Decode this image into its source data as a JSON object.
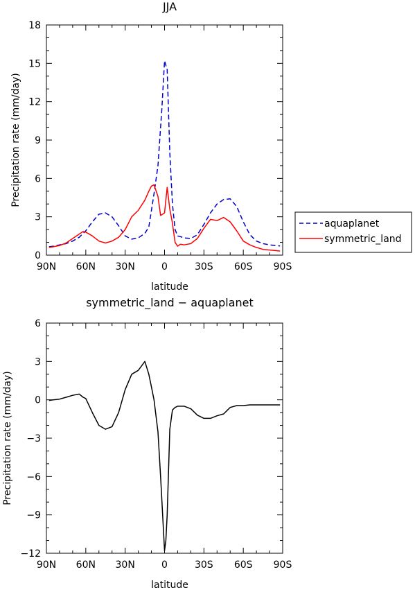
{
  "chart_data": [
    {
      "type": "line",
      "title": "JJA",
      "xlabel": "latitude",
      "ylabel": "Precipitation rate (mm/day)",
      "xlim": [
        -90,
        90
      ],
      "ylim": [
        0,
        18
      ],
      "x_tick_values": [
        -90,
        -60,
        -30,
        0,
        30,
        60,
        90
      ],
      "x_tick_labels": [
        "90N",
        "60N",
        "30N",
        "0",
        "30S",
        "60S",
        "90S"
      ],
      "y_tick_values": [
        0,
        3,
        6,
        9,
        12,
        15,
        18
      ],
      "y_tick_labels": [
        "0",
        "3",
        "6",
        "9",
        "12",
        "15",
        "18"
      ],
      "legend": "right",
      "grid": false,
      "series": [
        {
          "name": "aquaplanet",
          "color": "#0000cc",
          "dash": "dashed",
          "x": [
            -88,
            -85,
            -80,
            -75,
            -70,
            -65,
            -60,
            -55,
            -50,
            -45,
            -40,
            -35,
            -30,
            -25,
            -20,
            -15,
            -12,
            -10,
            -8,
            -5,
            -2,
            0,
            2,
            4,
            6,
            8,
            10,
            12,
            15,
            20,
            25,
            30,
            35,
            40,
            45,
            50,
            55,
            60,
            65,
            70,
            75,
            80,
            85,
            88
          ],
          "y": [
            0.65,
            0.7,
            0.8,
            0.9,
            1.1,
            1.4,
            1.9,
            2.6,
            3.2,
            3.3,
            3.0,
            2.3,
            1.5,
            1.25,
            1.35,
            1.7,
            2.2,
            3.5,
            4.8,
            7.0,
            11.5,
            15.2,
            14.5,
            8.0,
            4.0,
            2.0,
            1.5,
            1.45,
            1.35,
            1.3,
            1.6,
            2.4,
            3.3,
            4.0,
            4.35,
            4.4,
            3.8,
            2.6,
            1.6,
            1.1,
            0.9,
            0.8,
            0.75,
            0.72
          ]
        },
        {
          "name": "symmetric_land",
          "color": "#ff0000",
          "dash": "solid",
          "x": [
            -88,
            -85,
            -80,
            -75,
            -70,
            -65,
            -62,
            -60,
            -55,
            -50,
            -45,
            -40,
            -35,
            -30,
            -25,
            -20,
            -15,
            -12,
            -10,
            -8,
            -5,
            -3,
            0,
            2,
            4,
            6,
            8,
            10,
            12,
            15,
            20,
            25,
            30,
            35,
            40,
            45,
            50,
            55,
            60,
            65,
            70,
            75,
            80,
            85,
            88
          ],
          "y": [
            0.6,
            0.65,
            0.75,
            0.95,
            1.3,
            1.65,
            1.85,
            1.8,
            1.5,
            1.1,
            0.95,
            1.1,
            1.4,
            2.0,
            3.0,
            3.5,
            4.3,
            5.0,
            5.4,
            5.5,
            4.6,
            3.1,
            3.3,
            5.3,
            3.6,
            2.5,
            1.0,
            0.7,
            0.85,
            0.8,
            0.9,
            1.3,
            2.1,
            2.8,
            2.7,
            2.95,
            2.6,
            1.9,
            1.1,
            0.8,
            0.6,
            0.45,
            0.4,
            0.35,
            0.32
          ]
        }
      ]
    },
    {
      "type": "line",
      "title": "symmetric_land − aquaplanet",
      "xlabel": "latitude",
      "ylabel": "Precipitation rate (mm/day)",
      "xlim": [
        -90,
        90
      ],
      "ylim": [
        -12,
        6
      ],
      "x_tick_values": [
        -90,
        -60,
        -30,
        0,
        30,
        60,
        90
      ],
      "x_tick_labels": [
        "90N",
        "60N",
        "30N",
        "0",
        "30S",
        "60S",
        "90S"
      ],
      "y_tick_values": [
        -12,
        -9,
        -6,
        -3,
        0,
        3,
        6
      ],
      "y_tick_labels": [
        "−12",
        "−9",
        "−6",
        "−3",
        "0",
        "3",
        "6"
      ],
      "grid": false,
      "series": [
        {
          "color": "#000000",
          "dash": "solid",
          "x": [
            -88,
            -85,
            -80,
            -75,
            -70,
            -65,
            -62,
            -60,
            -55,
            -50,
            -45,
            -40,
            -35,
            -30,
            -25,
            -20,
            -15,
            -12,
            -10,
            -8,
            -5,
            -3,
            0,
            1,
            2,
            4,
            6,
            8,
            10,
            15,
            20,
            25,
            30,
            35,
            40,
            45,
            50,
            55,
            60,
            65,
            70,
            75,
            80,
            85,
            88
          ],
          "y": [
            -0.05,
            0.0,
            0.05,
            0.2,
            0.35,
            0.45,
            0.2,
            0.1,
            -1.0,
            -2.0,
            -2.3,
            -2.1,
            -1.0,
            0.8,
            2.0,
            2.3,
            3.0,
            2.0,
            1.0,
            0.0,
            -2.5,
            -6.0,
            -11.8,
            -11.0,
            -9.0,
            -2.3,
            -0.8,
            -0.6,
            -0.5,
            -0.5,
            -0.7,
            -1.2,
            -1.45,
            -1.45,
            -1.25,
            -1.1,
            -0.6,
            -0.45,
            -0.45,
            -0.4,
            -0.4,
            -0.4,
            -0.4,
            -0.4,
            -0.4
          ]
        }
      ]
    }
  ]
}
